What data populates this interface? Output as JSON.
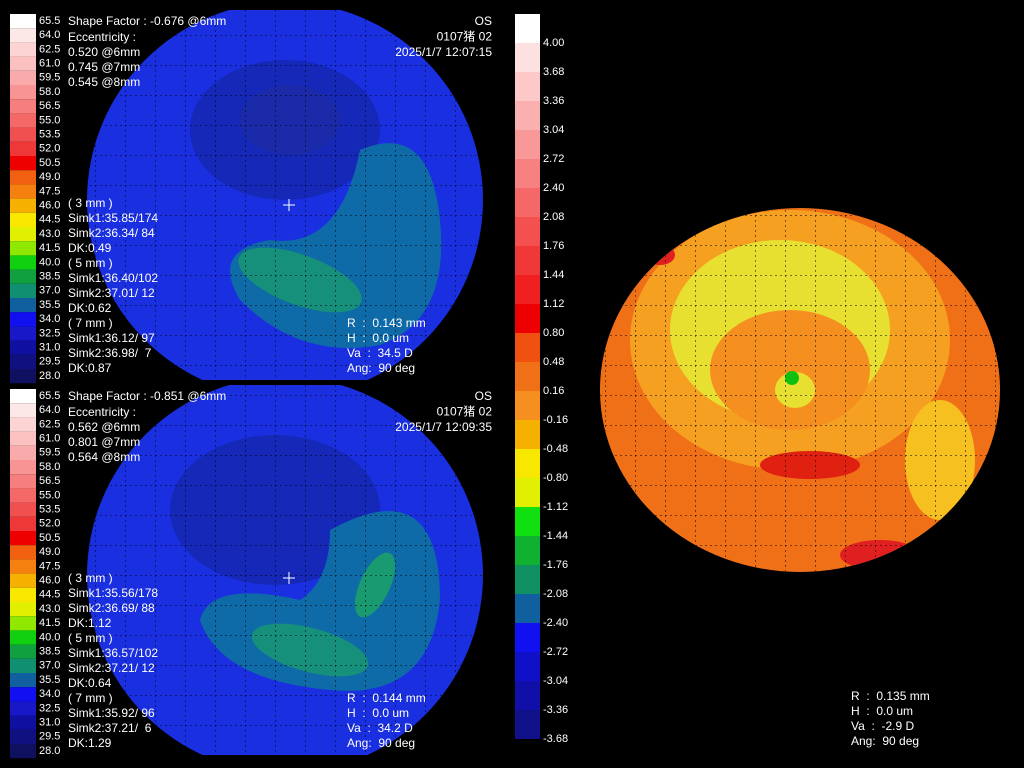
{
  "maps": [
    {
      "scale": [
        "65.5",
        "64.0",
        "62.5",
        "61.0",
        "59.5",
        "58.0",
        "56.5",
        "55.0",
        "53.5",
        "52.0",
        "50.5",
        "49.0",
        "47.5",
        "46.0",
        "44.5",
        "43.0",
        "41.5",
        "40.0",
        "38.5",
        "37.0",
        "35.5",
        "34.0",
        "32.5",
        "31.0",
        "29.5",
        "28.0"
      ],
      "shape_factor": "Shape Factor : -0.676 @6mm",
      "eccentricity": [
        "Eccentricity :",
        "0.520 @6mm",
        "0.745 @7mm",
        "0.545 @8mm"
      ],
      "header": [
        "OS",
        "0107猪 02",
        "2025/1/7 12:07:15"
      ],
      "zones": [
        [
          "( 3 mm )",
          "Simk1:35.85/174",
          "Simk2:36.34/ 84",
          "DK:0.49"
        ],
        [
          "( 5 mm )",
          "Simk1:36.40/102",
          "Simk2:37.01/ 12",
          "DK:0.62"
        ],
        [
          "( 7 mm )",
          "Simk1:36.12/ 97",
          "Simk2:36.98/  7",
          "DK:0.87"
        ]
      ],
      "cursor": [
        "R  :  0.143 mm",
        "H  :  0.0 um",
        "Va  :  34.5 D",
        "Ang:  90 deg"
      ]
    },
    {
      "scale": [
        "65.5",
        "64.0",
        "62.5",
        "61.0",
        "59.5",
        "58.0",
        "56.5",
        "55.0",
        "53.5",
        "52.0",
        "50.5",
        "49.0",
        "47.5",
        "46.0",
        "44.5",
        "43.0",
        "41.5",
        "40.0",
        "38.5",
        "37.0",
        "35.5",
        "34.0",
        "32.5",
        "31.0",
        "29.5",
        "28.0"
      ],
      "shape_factor": "Shape Factor : -0.851 @6mm",
      "eccentricity": [
        "Eccentricity :",
        "0.562 @6mm",
        "0.801 @7mm",
        "0.564 @8mm"
      ],
      "header": [
        "OS",
        "0107猪 02",
        "2025/1/7 12:09:35"
      ],
      "zones": [
        [
          "( 3 mm )",
          "Simk1:35.56/178",
          "Simk2:36.69/ 88",
          "DK:1.12"
        ],
        [
          "( 5 mm )",
          "Simk1:36.57/102",
          "Simk2:37.21/ 12",
          "DK:0.64"
        ],
        [
          "( 7 mm )",
          "Simk1:35.92/ 96",
          "Simk2:37.21/  6",
          "DK:1.29"
        ]
      ],
      "cursor": [
        "R  :  0.144 mm",
        "H  :  0.0 um",
        "Va  :  34.2 D",
        "Ang:  90 deg"
      ]
    }
  ],
  "diff_map": {
    "scale": [
      "4.00",
      "3.68",
      "3.36",
      "3.04",
      "2.72",
      "2.40",
      "2.08",
      "1.76",
      "1.44",
      "1.12",
      "0.80",
      "0.48",
      "0.16",
      "-0.16",
      "-0.48",
      "-0.80",
      "-1.12",
      "-1.44",
      "-1.76",
      "-2.08",
      "-2.40",
      "-2.72",
      "-3.04",
      "-3.36",
      "-3.68"
    ],
    "cursor": [
      "R  :  0.135 mm",
      "H  :  0.0 um",
      "Va  :  -2.9 D",
      "Ang:  90 deg"
    ]
  }
}
